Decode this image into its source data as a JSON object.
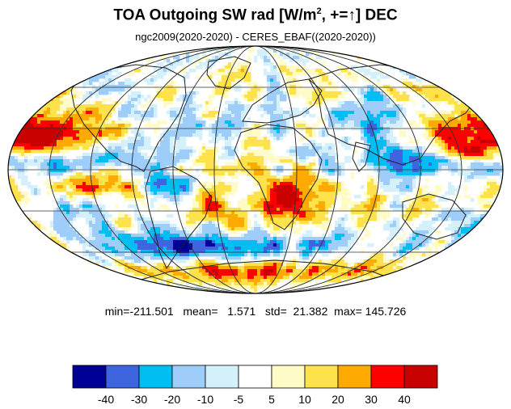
{
  "title": {
    "prefix": "TOA Outgoing SW rad [W/m",
    "sup": "2",
    "suffix": ", +=↑] DEC"
  },
  "subtitle": "ngc2009(2020-2020) - CERES_EBAF((2020-2020))",
  "stats": "min=-211.501   mean=   1.571   std=  21.382  max= 145.726",
  "colorbar": {
    "colors": [
      "#000096",
      "#3e64e0",
      "#00bdf2",
      "#9ecdfa",
      "#d4f0fb",
      "#ffffff",
      "#fffbc7",
      "#fde24b",
      "#ffaa00",
      "#ff0000",
      "#c80000"
    ],
    "labels": [
      "-40",
      "-30",
      "-20",
      "-10",
      "-5",
      "5",
      "10",
      "20",
      "30",
      "40"
    ]
  },
  "map": {
    "projection": "mollweide",
    "colors": {
      "outline": "#000000",
      "grid": "#333333",
      "coast": "#222222"
    }
  }
}
